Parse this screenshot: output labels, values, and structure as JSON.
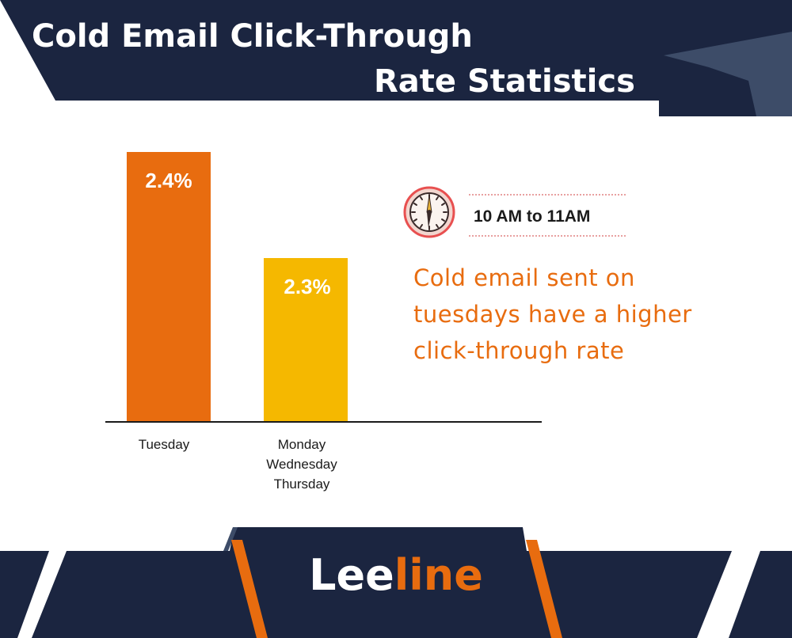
{
  "header": {
    "title_line1": "Cold Email Click-Through",
    "title_line2": "Rate Statistics"
  },
  "chart_data": {
    "type": "bar",
    "categories": [
      "Tuesday",
      "Monday\nWednesday\nThursday"
    ],
    "values": [
      2.4,
      2.3
    ],
    "value_labels": [
      "2.4%",
      "2.3%"
    ],
    "colors": [
      "#e86c0f",
      "#f5b800"
    ],
    "title": "",
    "xlabel": "",
    "ylabel": "",
    "legend": "none",
    "grid": false
  },
  "time_badge": {
    "icon": "clock-icon",
    "label": "10 AM to 11AM"
  },
  "note": "Cold email sent on tuesdays have a higher click-through rate",
  "brand": {
    "name_part1": "Lee",
    "name_part2": "line"
  },
  "colors": {
    "navy": "#1b2540",
    "orange": "#e86c0f",
    "yellow": "#f5b800"
  }
}
